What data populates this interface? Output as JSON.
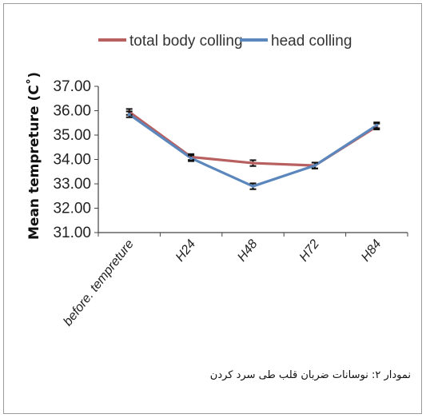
{
  "caption": "نمودار ۲: نوسانات ضربان قلب طی سرد کردن",
  "chart_data": {
    "type": "line",
    "categories": [
      "before. tempreture",
      "H24",
      "H48",
      "H72",
      "H84"
    ],
    "series": [
      {
        "name": "total body colling",
        "values": [
          35.95,
          34.1,
          33.85,
          33.75,
          35.35
        ],
        "color": "#b85f5f"
      },
      {
        "name": "head colling",
        "values": [
          35.85,
          34.05,
          32.9,
          33.75,
          35.4
        ],
        "color": "#5b87bd"
      }
    ],
    "error": 0.12,
    "ylabel": "Mean tempreture  (C˚)",
    "xlabel": "",
    "ylim": [
      31,
      37
    ],
    "yticks": [
      "31.00",
      "32.00",
      "33.00",
      "34.00",
      "35.00",
      "36.00",
      "37.00"
    ],
    "legend_position": "top",
    "grid": false
  }
}
